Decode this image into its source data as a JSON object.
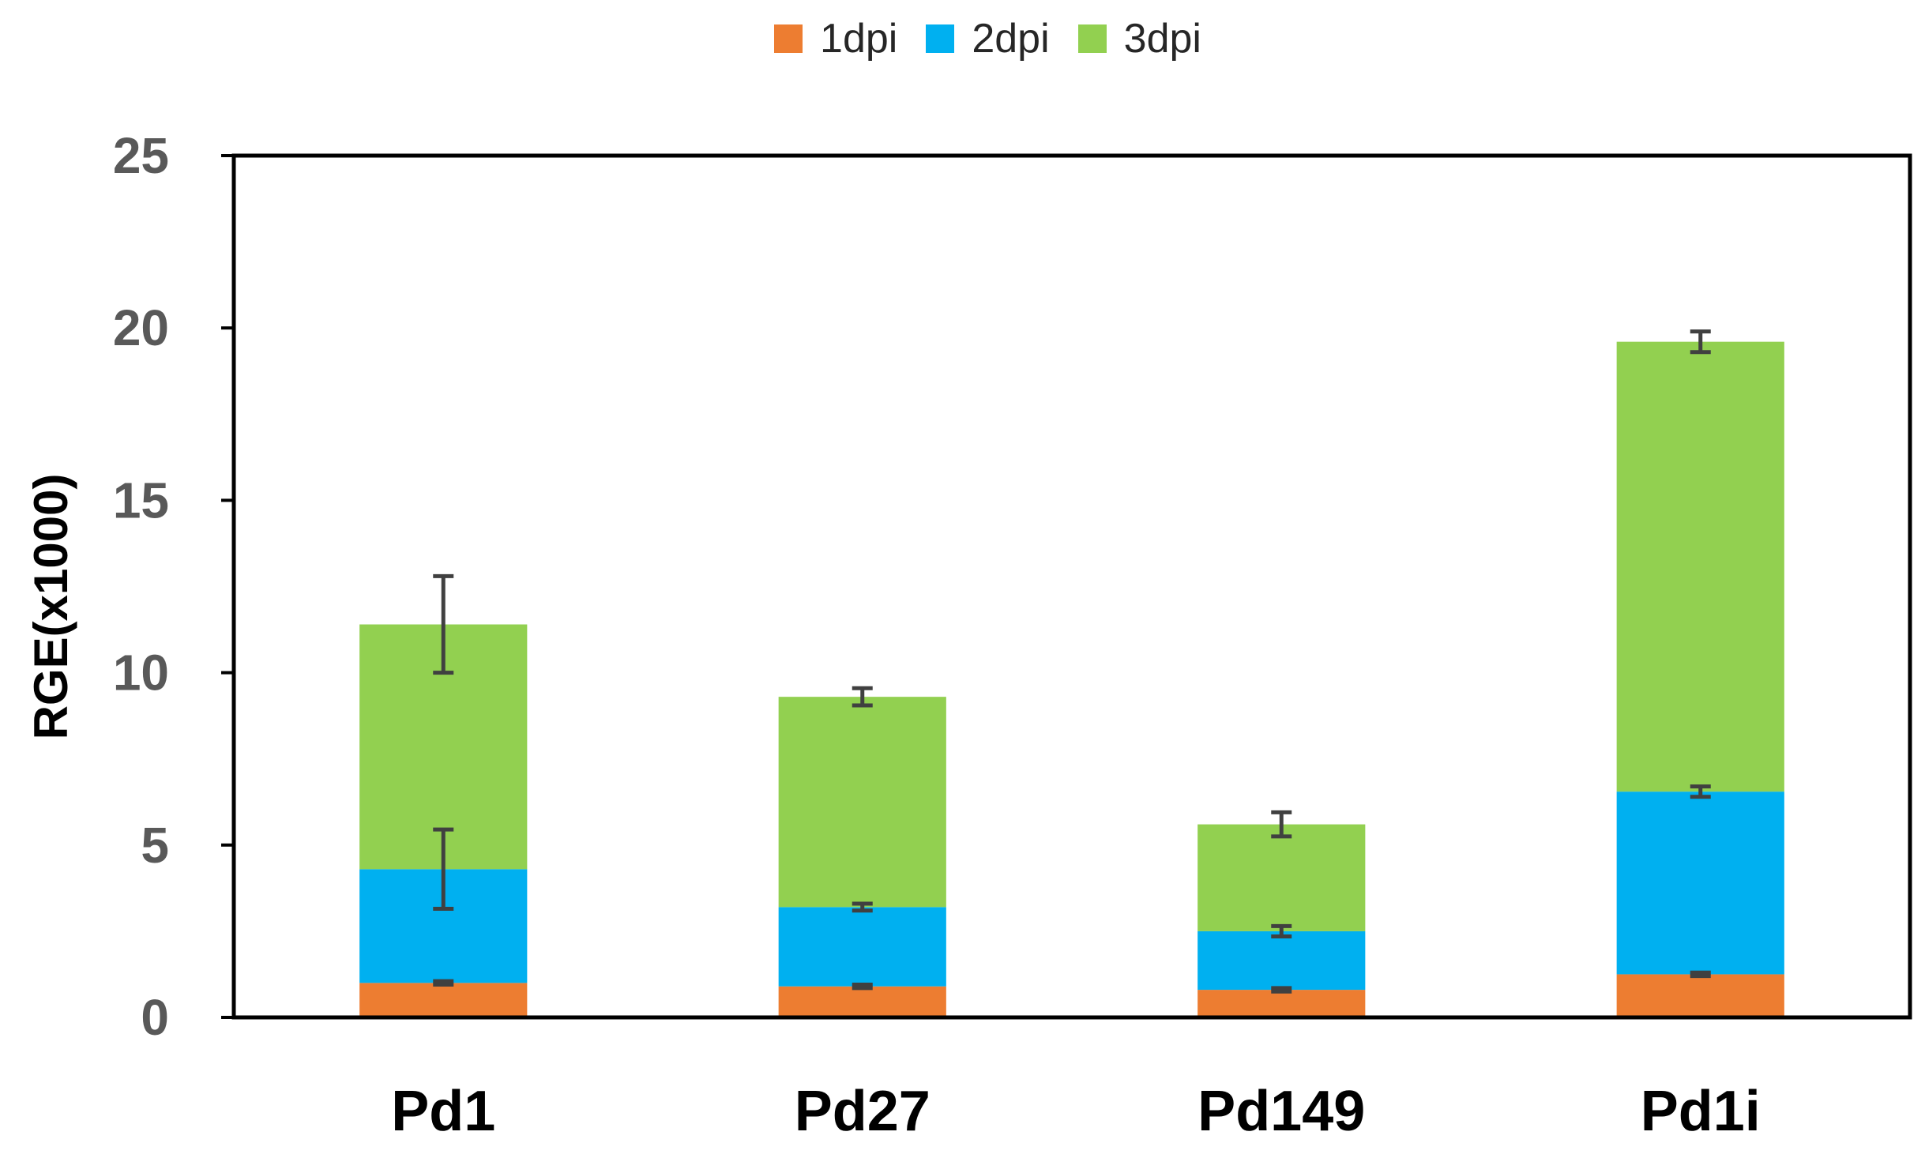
{
  "chart_data": {
    "type": "bar",
    "stacked": true,
    "title": "",
    "xlabel": "",
    "ylabel": "RGE(x1000)",
    "ylim": [
      0,
      25
    ],
    "yticks": [
      0,
      5,
      10,
      15,
      20,
      25
    ],
    "ytick_labels": [
      "0",
      "5",
      "10",
      "15",
      "20",
      "25"
    ],
    "grid": false,
    "legend_position": "top-center",
    "categories": [
      "Pd1",
      "Pd27",
      "Pd149",
      "Pd1i"
    ],
    "series": [
      {
        "name": "1dpi",
        "color": "#ED7D31",
        "values": [
          1.0,
          0.9,
          0.8,
          1.25
        ],
        "error_bars": [
          0.05,
          0.05,
          0.05,
          0.05
        ]
      },
      {
        "name": "2dpi",
        "color": "#00B0F0",
        "values": [
          3.3,
          2.3,
          1.7,
          5.3
        ],
        "error_bars": [
          1.15,
          0.1,
          0.15,
          0.15
        ]
      },
      {
        "name": "3dpi",
        "color": "#92D050",
        "values": [
          7.1,
          6.1,
          3.1,
          13.05
        ],
        "error_bars": [
          1.4,
          0.25,
          0.35,
          0.3
        ]
      }
    ],
    "colors": {
      "axis": "#000000",
      "error_bar": "#404040",
      "tick_label": "#595959"
    }
  }
}
